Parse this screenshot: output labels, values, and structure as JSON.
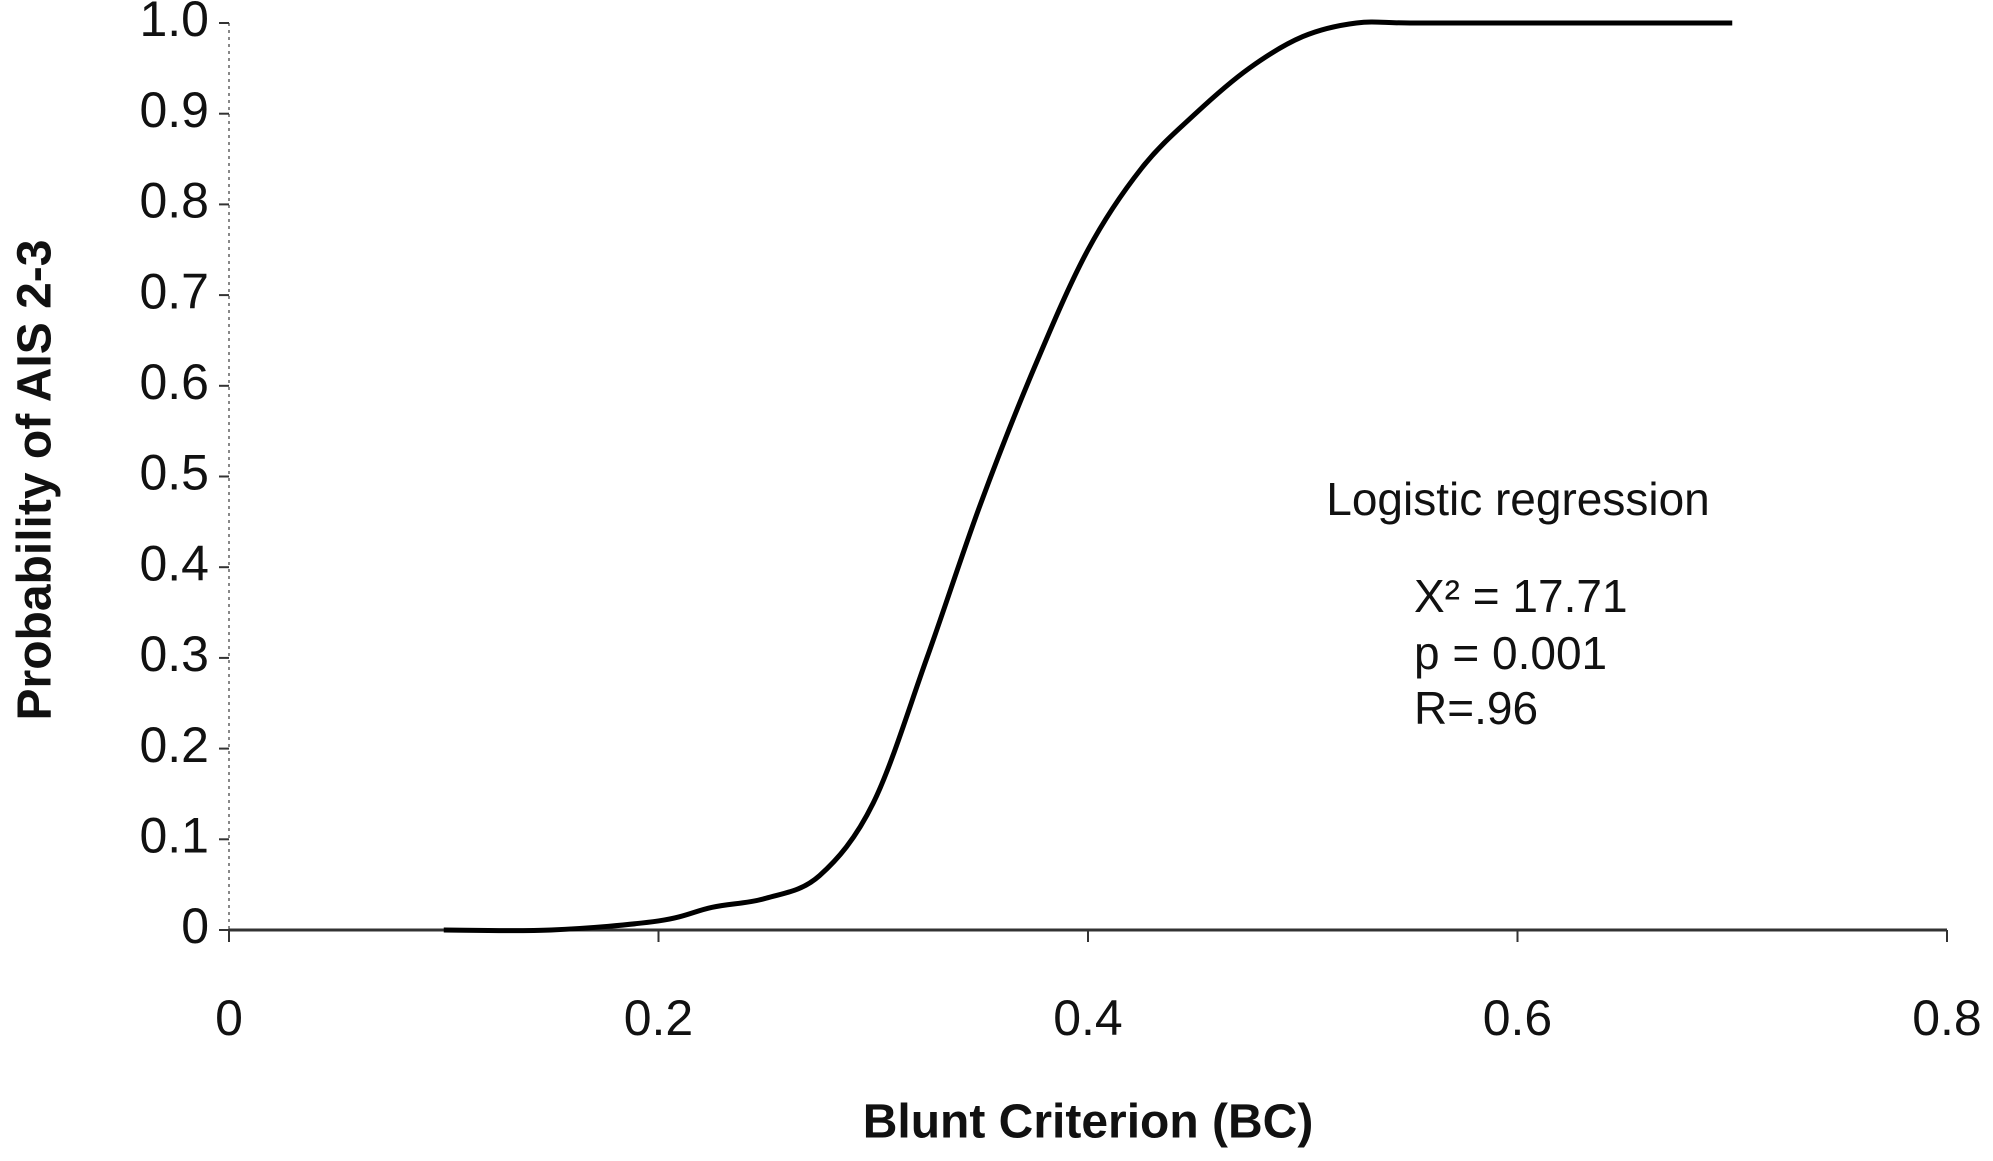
{
  "chart_data": {
    "type": "line",
    "x_label": "Blunt Criterion (BC)",
    "y_label": "Probability of AIS 2-3",
    "annotations": [
      "Logistic regression",
      "X² = 17.71",
      "p = 0.001",
      "R=.96"
    ],
    "x": [
      0.1,
      0.15,
      0.2,
      0.225,
      0.25,
      0.275,
      0.3,
      0.325,
      0.35,
      0.375,
      0.4,
      0.425,
      0.45,
      0.475,
      0.5,
      0.525,
      0.55,
      0.6,
      0.65,
      0.7
    ],
    "series": [
      {
        "color": "#000000",
        "values": [
          0,
          0,
          0.01,
          0.025,
          0.035,
          0.06,
          0.14,
          0.3,
          0.47,
          0.62,
          0.75,
          0.84,
          0.9,
          0.95,
          0.985,
          1.0,
          1.0,
          1.0,
          1.0,
          1.0
        ]
      }
    ],
    "xlim": [
      0,
      0.8
    ],
    "xticks": [
      0,
      0.2,
      0.4,
      0.6,
      0.8
    ],
    "ylim": [
      0,
      1.0
    ],
    "yticks": [
      0,
      0.1,
      0.2,
      0.3,
      0.4,
      0.5,
      0.6,
      0.7,
      0.8,
      0.9,
      {
        "value": 1.0,
        "label": "1.0"
      }
    ],
    "grid": false
  }
}
